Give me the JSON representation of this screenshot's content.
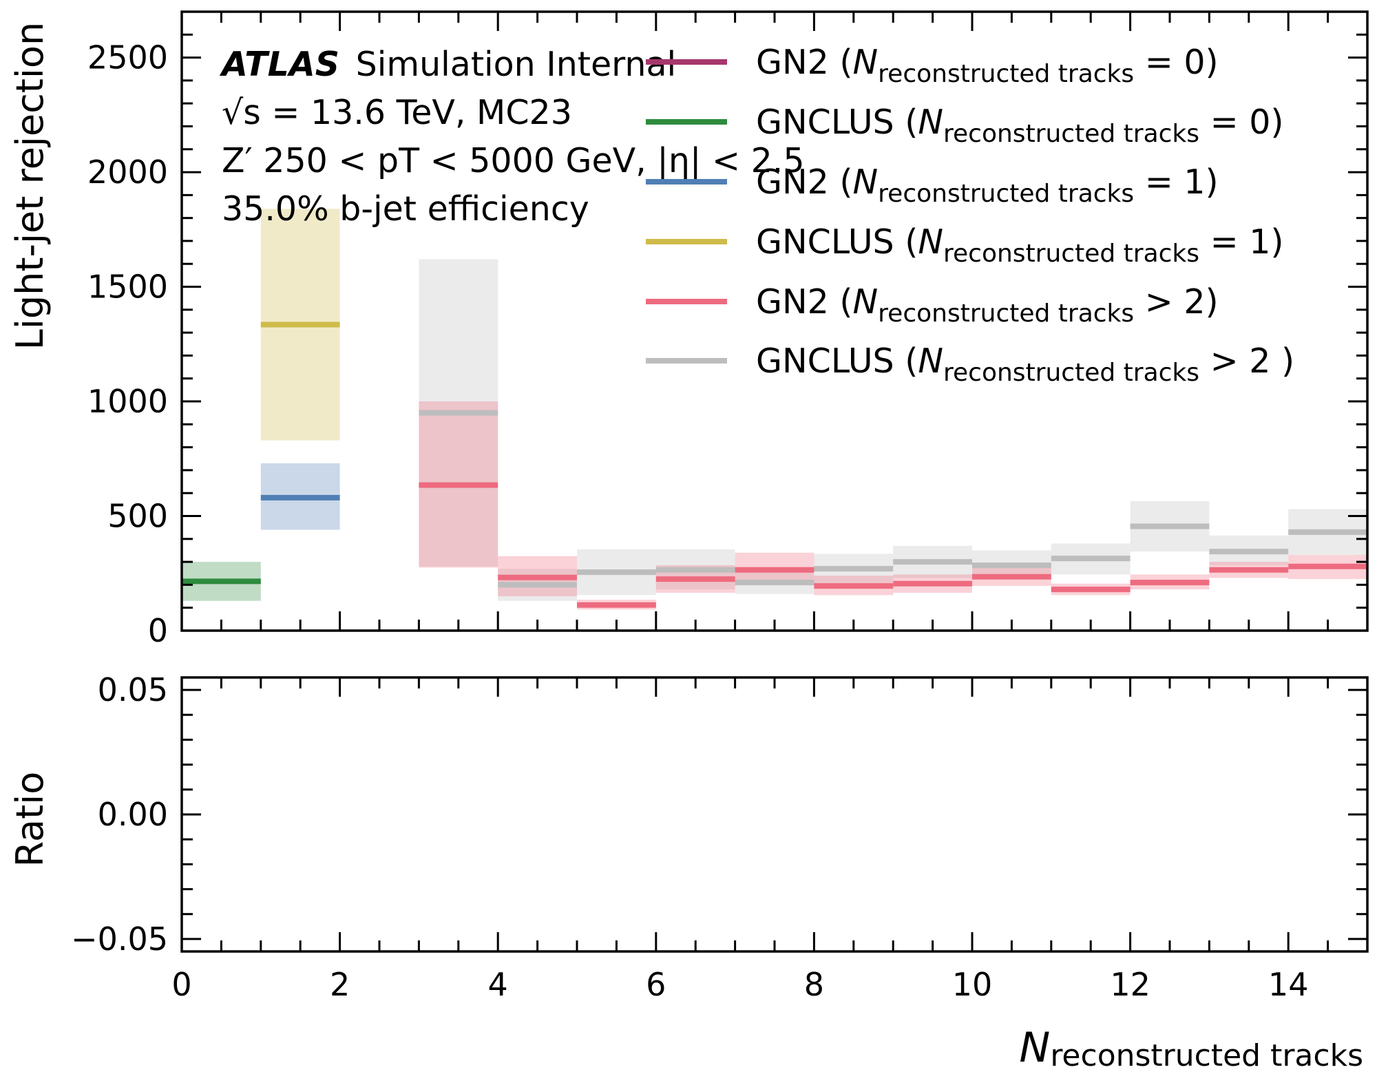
{
  "chart_data": [
    {
      "type": "step-bar",
      "panel": "main",
      "ylabel": "Light-jet rejection",
      "xlim": [
        0,
        15
      ],
      "ylim": [
        0,
        2700
      ],
      "yticks": [
        "0",
        "500",
        "1000",
        "1500",
        "2000",
        "2500"
      ],
      "annotation": {
        "experiment": "ATLAS",
        "status": "Simulation Internal",
        "line2": "√s = 13.6 TeV, MC23",
        "line3": "Z′ 250 < pT < 5000 GeV, |η| < 2.5",
        "line4": "35.0% b-jet efficiency"
      },
      "legend_location": "top-right",
      "series": [
        {
          "name": "GN2 (Nreconstructed tracks = 0)",
          "color": "#a6376e",
          "bins": []
        },
        {
          "name": "GNCLUS (Nreconstructed tracks = 0)",
          "color": "#2e8b3e",
          "bins": [
            {
              "x0": 0,
              "x1": 1,
              "y": 215,
              "lo": 130,
              "hi": 300
            }
          ]
        },
        {
          "name": "GN2 (Nreconstructed tracks = 1)",
          "color": "#4f7fb5",
          "bins": [
            {
              "x0": 1,
              "x1": 2,
              "y": 580,
              "lo": 440,
              "hi": 730
            }
          ]
        },
        {
          "name": "GNCLUS (Nreconstructed tracks = 1)",
          "color": "#cfbb4a",
          "bins": [
            {
              "x0": 1,
              "x1": 2,
              "y": 1335,
              "lo": 830,
              "hi": 1840
            }
          ]
        },
        {
          "name": "GN2 (Nreconstructed tracks > 2)",
          "color": "#ee6b7f",
          "bins": [
            {
              "x0": 3,
              "x1": 4,
              "y": 635,
              "lo": 275,
              "hi": 1000
            },
            {
              "x0": 4,
              "x1": 5,
              "y": 232,
              "lo": 150,
              "hi": 325
            },
            {
              "x0": 5,
              "x1": 6,
              "y": 112,
              "lo": 92,
              "hi": 135
            },
            {
              "x0": 6,
              "x1": 7,
              "y": 225,
              "lo": 165,
              "hi": 285
            },
            {
              "x0": 7,
              "x1": 8,
              "y": 265,
              "lo": 200,
              "hi": 340
            },
            {
              "x0": 8,
              "x1": 9,
              "y": 195,
              "lo": 155,
              "hi": 240
            },
            {
              "x0": 9,
              "x1": 10,
              "y": 205,
              "lo": 165,
              "hi": 245
            },
            {
              "x0": 10,
              "x1": 11,
              "y": 235,
              "lo": 195,
              "hi": 280
            },
            {
              "x0": 11,
              "x1": 12,
              "y": 180,
              "lo": 155,
              "hi": 205
            },
            {
              "x0": 12,
              "x1": 13,
              "y": 210,
              "lo": 180,
              "hi": 245
            },
            {
              "x0": 13,
              "x1": 14,
              "y": 265,
              "lo": 230,
              "hi": 300
            },
            {
              "x0": 14,
              "x1": 15,
              "y": 280,
              "lo": 225,
              "hi": 330
            }
          ]
        },
        {
          "name": "GNCLUS (Nreconstructed tracks > 2 )",
          "color": "#bdbdbd",
          "bins": [
            {
              "x0": 3,
              "x1": 4,
              "y": 950,
              "lo": 280,
              "hi": 1620
            },
            {
              "x0": 4,
              "x1": 5,
              "y": 200,
              "lo": 130,
              "hi": 270
            },
            {
              "x0": 5,
              "x1": 6,
              "y": 255,
              "lo": 155,
              "hi": 355
            },
            {
              "x0": 6,
              "x1": 7,
              "y": 265,
              "lo": 180,
              "hi": 355
            },
            {
              "x0": 7,
              "x1": 8,
              "y": 210,
              "lo": 160,
              "hi": 270
            },
            {
              "x0": 8,
              "x1": 9,
              "y": 270,
              "lo": 195,
              "hi": 335
            },
            {
              "x0": 9,
              "x1": 10,
              "y": 300,
              "lo": 230,
              "hi": 370
            },
            {
              "x0": 10,
              "x1": 11,
              "y": 285,
              "lo": 230,
              "hi": 350
            },
            {
              "x0": 11,
              "x1": 12,
              "y": 315,
              "lo": 245,
              "hi": 380
            },
            {
              "x0": 12,
              "x1": 13,
              "y": 455,
              "lo": 345,
              "hi": 565
            },
            {
              "x0": 13,
              "x1": 14,
              "y": 345,
              "lo": 285,
              "hi": 415
            },
            {
              "x0": 14,
              "x1": 15,
              "y": 430,
              "lo": 330,
              "hi": 530
            }
          ]
        }
      ]
    },
    {
      "type": "line",
      "panel": "ratio",
      "ylabel": "Ratio",
      "xlabel": "Nreconstructed tracks",
      "xlim": [
        0,
        15
      ],
      "ylim": [
        -0.055,
        0.055
      ],
      "yticks": [
        "−0.05",
        "0.00",
        "0.05"
      ],
      "xticks": [
        "0",
        "2",
        "4",
        "6",
        "8",
        "10",
        "12",
        "14"
      ],
      "series": []
    }
  ]
}
